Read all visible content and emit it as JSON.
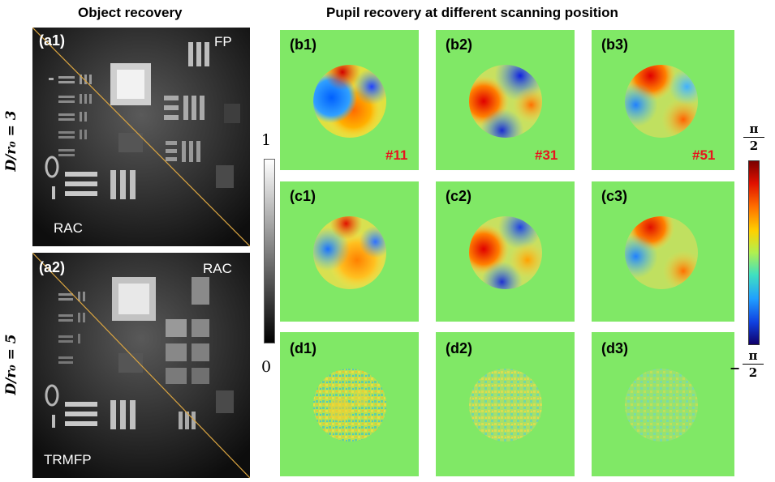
{
  "headings": {
    "object": "Object recovery",
    "pupil": "Pupil recovery at different scanning position"
  },
  "row_labels": {
    "row1": "D/r₀ = 3",
    "row2": "D/r₀ = 5"
  },
  "object_panels": [
    {
      "label": "(a1)",
      "top_method": "FP",
      "bottom_method": "RAC"
    },
    {
      "label": "(a2)",
      "top_method": "RAC",
      "bottom_method": "TRMFP"
    }
  ],
  "gray_colorbar": {
    "max_label": "1",
    "min_label": "0"
  },
  "pupil_panels": [
    {
      "label": "(b1)",
      "position": "#11"
    },
    {
      "label": "(b2)",
      "position": "#31"
    },
    {
      "label": "(b3)",
      "position": "#51"
    },
    {
      "label": "(c1)"
    },
    {
      "label": "(c2)"
    },
    {
      "label": "(c3)"
    },
    {
      "label": "(d1)"
    },
    {
      "label": "(d2)"
    },
    {
      "label": "(d3)"
    }
  ],
  "phase_colorbar": {
    "max_num": "π",
    "max_den": "2",
    "min_sign": "−",
    "min_num": "π",
    "min_den": "2"
  },
  "colors": {
    "pupil_background": "#80e866",
    "position_text": "#e8141e",
    "diagonal_line": "#d9a441"
  }
}
